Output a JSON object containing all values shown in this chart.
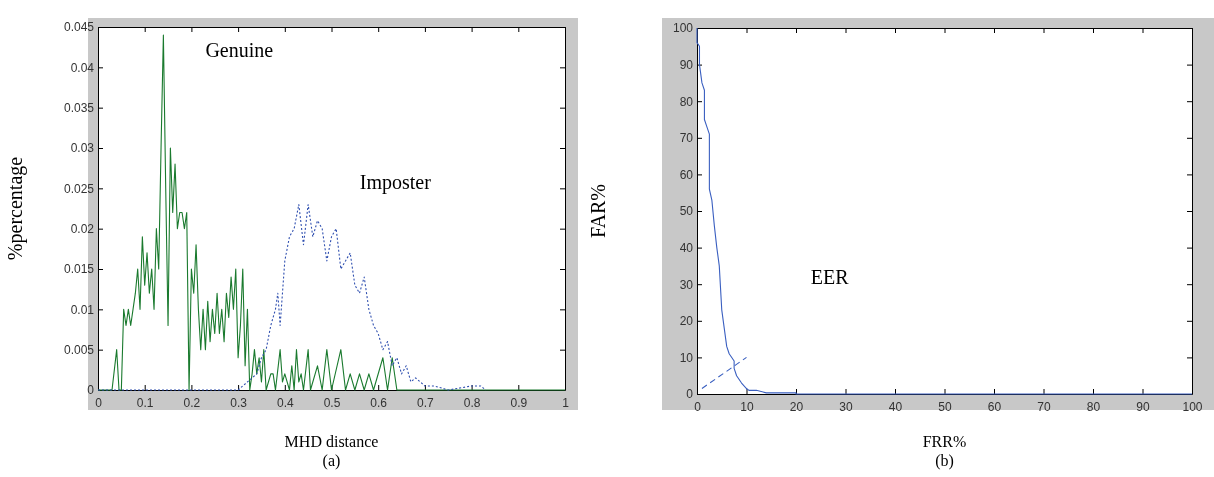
{
  "chart_data": [
    {
      "type": "line",
      "xlabel": "MHD distance",
      "ylabel": "%percentage",
      "annotations": [
        "(a)"
      ],
      "xlim": [
        0,
        1
      ],
      "ylim": [
        0,
        0.045
      ],
      "xticks": [
        0,
        0.1,
        0.2,
        0.3,
        0.4,
        0.5,
        0.6,
        0.7,
        0.8,
        0.9,
        1
      ],
      "yticks": [
        0,
        0.005,
        0.01,
        0.015,
        0.02,
        0.025,
        0.03,
        0.035,
        0.04,
        0.045
      ],
      "series": [
        {
          "name": "Genuine",
          "color": "#1a7a2e",
          "line_style": "solid",
          "x": [
            0,
            0.03,
            0.04,
            0.045,
            0.05,
            0.055,
            0.06,
            0.065,
            0.07,
            0.075,
            0.08,
            0.085,
            0.09,
            0.095,
            0.1,
            0.105,
            0.11,
            0.115,
            0.12,
            0.125,
            0.13,
            0.135,
            0.14,
            0.145,
            0.15,
            0.155,
            0.16,
            0.165,
            0.17,
            0.175,
            0.18,
            0.185,
            0.19,
            0.195,
            0.2,
            0.205,
            0.21,
            0.215,
            0.22,
            0.225,
            0.23,
            0.235,
            0.24,
            0.245,
            0.25,
            0.255,
            0.26,
            0.265,
            0.27,
            0.275,
            0.28,
            0.285,
            0.29,
            0.295,
            0.3,
            0.305,
            0.31,
            0.315,
            0.32,
            0.325,
            0.33,
            0.335,
            0.34,
            0.345,
            0.35,
            0.355,
            0.36,
            0.37,
            0.375,
            0.38,
            0.39,
            0.395,
            0.4,
            0.41,
            0.415,
            0.42,
            0.425,
            0.43,
            0.435,
            0.44,
            0.45,
            0.455,
            0.47,
            0.48,
            0.49,
            0.5,
            0.52,
            0.53,
            0.54,
            0.55,
            0.56,
            0.57,
            0.58,
            0.59,
            0.61,
            0.62,
            0.63,
            0.64,
            1
          ],
          "values": [
            0,
            0,
            0.005,
            0,
            0,
            0.01,
            0.008,
            0.01,
            0.008,
            0.01,
            0.012,
            0.015,
            0.01,
            0.019,
            0.013,
            0.017,
            0.012,
            0.015,
            0.01,
            0.02,
            0.015,
            0.03,
            0.044,
            0.025,
            0.008,
            0.03,
            0.022,
            0.028,
            0.02,
            0.022,
            0.022,
            0.02,
            0.022,
            0,
            0.015,
            0.012,
            0.018,
            0.01,
            0.005,
            0.01,
            0.005,
            0.011,
            0.006,
            0.01,
            0.007,
            0.012,
            0.007,
            0.01,
            0.006,
            0.012,
            0.009,
            0.014,
            0.01,
            0.015,
            0.004,
            0.008,
            0.015,
            0.003,
            0.01,
            0,
            0.002,
            0.005,
            0.002,
            0.004,
            0.001,
            0.005,
            0,
            0.002,
            0.002,
            0,
            0.005,
            0.001,
            0.002,
            0,
            0.003,
            0,
            0.005,
            0.001,
            0.002,
            0,
            0.005,
            0,
            0.003,
            0,
            0.005,
            0,
            0.005,
            0,
            0.002,
            0,
            0.002,
            0,
            0.002,
            0,
            0.004,
            0,
            0.004,
            0,
            0
          ]
        },
        {
          "name": "Imposter",
          "color": "#3050b0",
          "line_style": "dotted",
          "x": [
            0,
            0.3,
            0.32,
            0.34,
            0.35,
            0.36,
            0.37,
            0.38,
            0.385,
            0.39,
            0.4,
            0.41,
            0.42,
            0.43,
            0.44,
            0.45,
            0.46,
            0.47,
            0.48,
            0.49,
            0.5,
            0.51,
            0.52,
            0.53,
            0.54,
            0.55,
            0.56,
            0.57,
            0.58,
            0.59,
            0.6,
            0.61,
            0.62,
            0.63,
            0.64,
            0.65,
            0.66,
            0.67,
            0.68,
            0.7,
            0.72,
            0.75,
            0.8,
            0.82,
            0.83
          ],
          "values": [
            0,
            0,
            0.001,
            0.002,
            0.004,
            0.005,
            0.008,
            0.01,
            0.012,
            0.008,
            0.016,
            0.019,
            0.02,
            0.023,
            0.018,
            0.023,
            0.019,
            0.021,
            0.02,
            0.016,
            0.019,
            0.02,
            0.015,
            0.016,
            0.017,
            0.013,
            0.012,
            0.014,
            0.01,
            0.008,
            0.007,
            0.005,
            0.006,
            0.003,
            0.004,
            0.002,
            0.003,
            0.001,
            0.0015,
            0.0005,
            0.0005,
            0,
            0.0005,
            0.0005,
            0
          ]
        }
      ]
    },
    {
      "type": "line",
      "xlabel": "FRR%",
      "ylabel": "FAR%",
      "annotations": [
        "EER",
        "(b)"
      ],
      "xlim": [
        0,
        100
      ],
      "ylim": [
        0,
        100
      ],
      "xticks": [
        0,
        10,
        20,
        30,
        40,
        50,
        60,
        70,
        80,
        90,
        100
      ],
      "yticks": [
        0,
        10,
        20,
        30,
        40,
        50,
        60,
        70,
        80,
        90,
        100
      ],
      "series": [
        {
          "color": "#3a5fc0",
          "line_style": "solid",
          "x": [
            0,
            0,
            0.5,
            0.5,
            1,
            1.5,
            1.5,
            2,
            2.5,
            2.5,
            3,
            3.5,
            4,
            4.5,
            5,
            5.5,
            6,
            6.5,
            7.5,
            7.5,
            8,
            9,
            10,
            10.5,
            12,
            14,
            20,
            20,
            100
          ],
          "values": [
            100,
            96,
            95,
            90,
            85,
            83,
            75,
            73,
            71,
            56,
            53,
            46,
            40,
            35,
            23,
            18,
            13,
            11,
            9,
            7,
            5,
            3,
            1.5,
            1,
            1,
            0.3,
            0.3,
            0,
            0
          ]
        },
        {
          "color": "#3a5fc0",
          "line_style": "dashed",
          "x": [
            1,
            10
          ],
          "values": [
            1.5,
            10
          ]
        }
      ]
    }
  ]
}
